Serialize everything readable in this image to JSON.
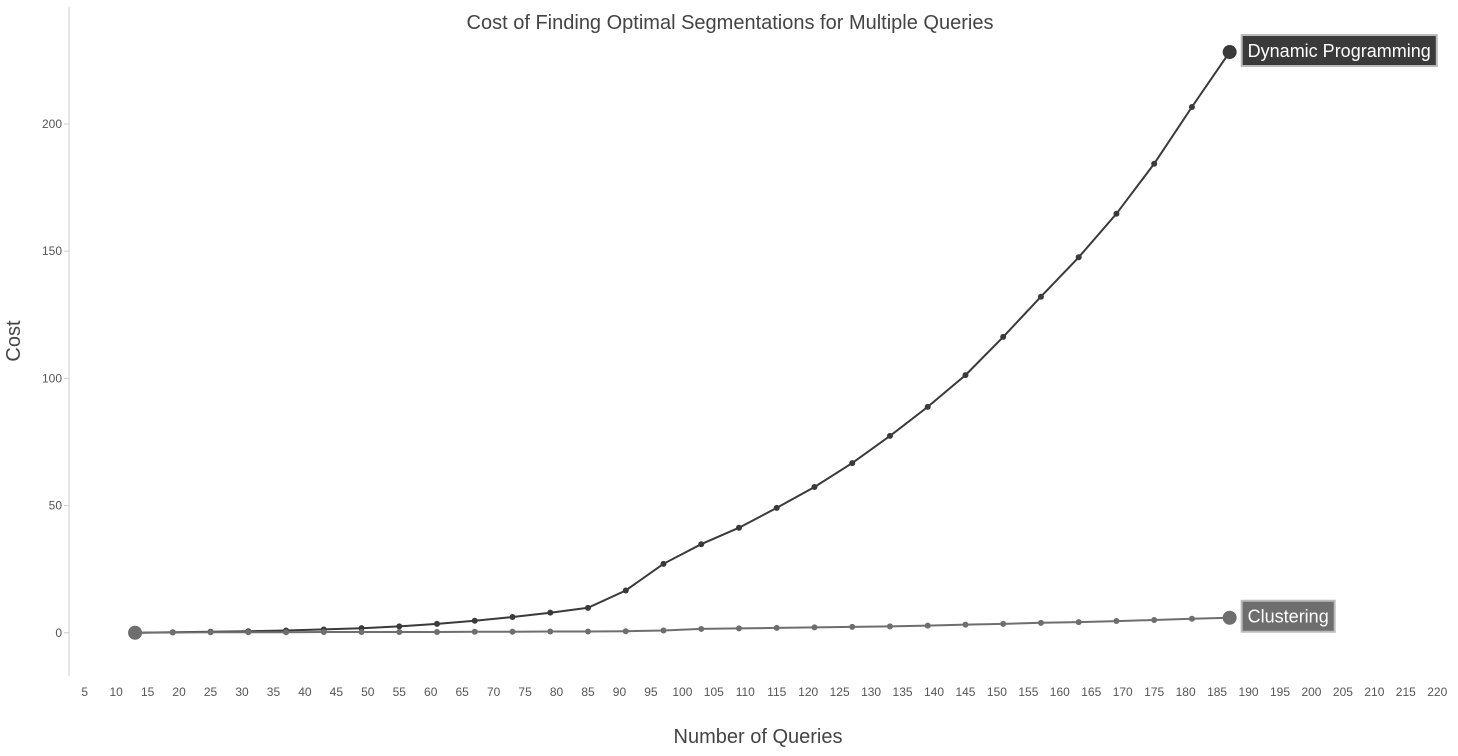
{
  "chart_data": {
    "type": "line",
    "title": "Cost of Finding Optimal Segmentations for Multiple Queries",
    "xlabel": "Number of Queries",
    "ylabel": "Cost",
    "xlim": [
      2.5,
      222.5
    ],
    "ylim": [
      -17,
      246
    ],
    "x_ticks": [
      5,
      10,
      15,
      20,
      25,
      30,
      35,
      40,
      45,
      50,
      55,
      60,
      65,
      70,
      75,
      80,
      85,
      90,
      95,
      100,
      105,
      110,
      115,
      120,
      125,
      130,
      135,
      140,
      145,
      150,
      155,
      160,
      165,
      170,
      175,
      180,
      185,
      190,
      195,
      200,
      205,
      210,
      215,
      220
    ],
    "y_ticks": [
      0,
      50,
      100,
      150,
      200
    ],
    "grid": false,
    "legend": "none (series labeled at line ends)",
    "x": [
      13,
      19,
      25,
      31,
      37,
      43,
      49,
      55,
      61,
      67,
      73,
      79,
      85,
      91,
      97,
      103,
      109,
      115,
      121,
      127,
      133,
      139,
      145,
      151,
      157,
      163,
      169,
      175,
      181,
      187
    ],
    "series": [
      {
        "name": "Dynamic Programming",
        "color": "#3a3a3a",
        "values": [
          0.0,
          0.2,
          0.4,
          0.6,
          0.9,
          1.3,
          1.8,
          2.5,
          3.5,
          4.7,
          6.2,
          7.9,
          9.8,
          16.6,
          27.1,
          34.8,
          41.3,
          49.1,
          57.3,
          66.7,
          77.4,
          88.8,
          101.3,
          116.3,
          132.1,
          147.6,
          164.7,
          184.4,
          206.7,
          228.3
        ]
      },
      {
        "name": "Clustering",
        "color": "#6e6e6e",
        "values": [
          0.0,
          0.1,
          0.2,
          0.2,
          0.2,
          0.3,
          0.3,
          0.3,
          0.3,
          0.4,
          0.4,
          0.5,
          0.5,
          0.6,
          0.9,
          1.5,
          1.7,
          1.9,
          2.1,
          2.3,
          2.5,
          2.8,
          3.2,
          3.5,
          3.9,
          4.2,
          4.6,
          5.0,
          5.5,
          5.9
        ]
      }
    ]
  }
}
